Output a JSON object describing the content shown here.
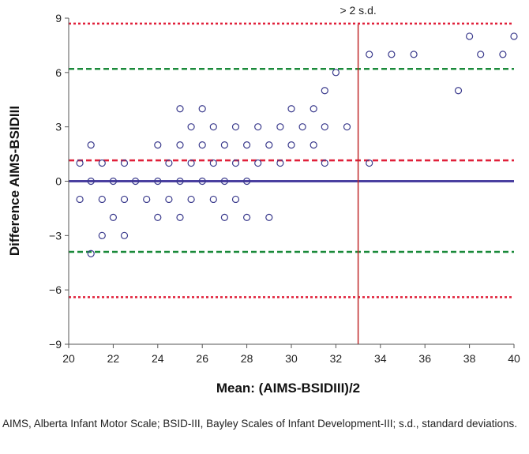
{
  "chart_data": {
    "type": "scatter",
    "title": "",
    "xlabel": "Mean: (AIMS-BSIDIII)/2",
    "ylabel": "Difference AIMS-BSIDIII",
    "xlim": [
      20,
      40
    ],
    "ylim": [
      -9,
      9
    ],
    "x_ticks": [
      20,
      22,
      24,
      26,
      28,
      30,
      32,
      34,
      36,
      38,
      40
    ],
    "y_ticks": [
      -9,
      -6,
      -3,
      0,
      3,
      6,
      9
    ],
    "y_tick_labels": [
      "−9",
      "−6",
      "−3",
      "0",
      "3",
      "6",
      "9"
    ],
    "x_tick_labels": [
      "20",
      "22",
      "24",
      "26",
      "28",
      "30",
      "32",
      "34",
      "36",
      "38",
      "40"
    ],
    "reference_lines": [
      {
        "name": "mean-difference",
        "y": 0,
        "color": "#4a3fa0",
        "style": "solid"
      },
      {
        "name": "upper-2sd",
        "y": 8.7,
        "color": "#e0203a",
        "style": "dotted"
      },
      {
        "name": "lower-2sd",
        "y": -6.4,
        "color": "#e0203a",
        "style": "dotted"
      },
      {
        "name": "upper-limit-green",
        "y": 6.2,
        "color": "#1a8a3a",
        "style": "dashed"
      },
      {
        "name": "lower-limit-green",
        "y": -3.9,
        "color": "#1a8a3a",
        "style": "dashed"
      },
      {
        "name": "upper-1sd-red",
        "y": 1.15,
        "color": "#e0203a",
        "style": "dashed"
      }
    ],
    "vertical_line": {
      "x": 33,
      "color": "#c0282a",
      "label": "> 2 s.d."
    },
    "marker_color": "#3a3a8c",
    "series": [
      {
        "name": "Difference",
        "points": [
          [
            20.5,
            1
          ],
          [
            20.5,
            -1
          ],
          [
            21,
            2
          ],
          [
            21,
            0
          ],
          [
            21,
            -4
          ],
          [
            21.5,
            1
          ],
          [
            21.5,
            -1
          ],
          [
            21.5,
            -3
          ],
          [
            22,
            0
          ],
          [
            22,
            -2
          ],
          [
            22.5,
            1
          ],
          [
            22.5,
            -1
          ],
          [
            22.5,
            -3
          ],
          [
            23,
            0
          ],
          [
            23.5,
            -1
          ],
          [
            24,
            2
          ],
          [
            24,
            0
          ],
          [
            24,
            -2
          ],
          [
            24.5,
            1
          ],
          [
            24.5,
            -1
          ],
          [
            25,
            4
          ],
          [
            25,
            2
          ],
          [
            25,
            0
          ],
          [
            25,
            -2
          ],
          [
            25.5,
            3
          ],
          [
            25.5,
            1
          ],
          [
            25.5,
            -1
          ],
          [
            26,
            4
          ],
          [
            26,
            2
          ],
          [
            26,
            0
          ],
          [
            26.5,
            3
          ],
          [
            26.5,
            1
          ],
          [
            26.5,
            -1
          ],
          [
            27,
            2
          ],
          [
            27,
            0
          ],
          [
            27,
            -2
          ],
          [
            27.5,
            3
          ],
          [
            27.5,
            1
          ],
          [
            27.5,
            -1
          ],
          [
            28,
            2
          ],
          [
            28,
            0
          ],
          [
            28,
            -2
          ],
          [
            28.5,
            3
          ],
          [
            28.5,
            1
          ],
          [
            29,
            2
          ],
          [
            29,
            -2
          ],
          [
            29.5,
            3
          ],
          [
            29.5,
            1
          ],
          [
            30,
            4
          ],
          [
            30,
            2
          ],
          [
            30.5,
            3
          ],
          [
            31,
            4
          ],
          [
            31,
            2
          ],
          [
            31.5,
            5
          ],
          [
            31.5,
            3
          ],
          [
            31.5,
            1
          ],
          [
            32,
            6
          ],
          [
            32.5,
            3
          ],
          [
            33.5,
            7
          ],
          [
            33.5,
            1
          ],
          [
            34.5,
            7
          ],
          [
            35.5,
            7
          ],
          [
            37.5,
            5
          ],
          [
            38,
            8
          ],
          [
            38.5,
            7
          ],
          [
            39.5,
            7
          ],
          [
            40,
            8
          ]
        ]
      }
    ]
  },
  "caption": "AIMS, Alberta Infant Motor Scale; BSID-III, Bayley Scales of Infant Development-III; s.d., standard deviations."
}
